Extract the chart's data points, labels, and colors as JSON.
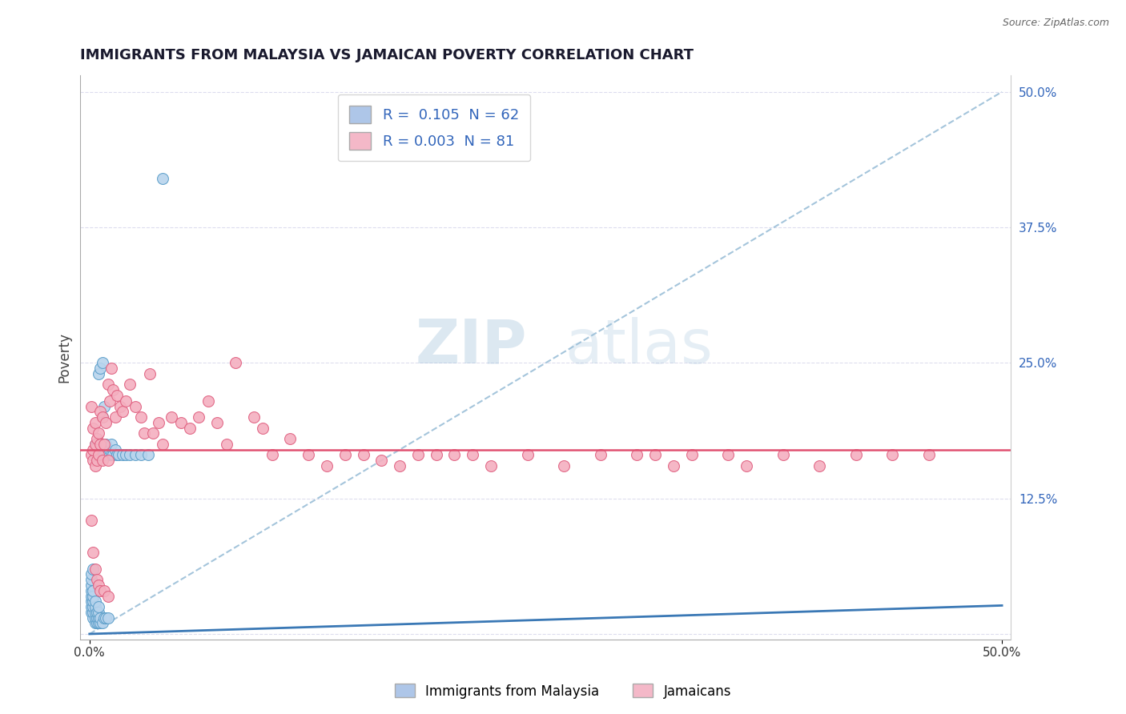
{
  "title": "IMMIGRANTS FROM MALAYSIA VS JAMAICAN POVERTY CORRELATION CHART",
  "source": "Source: ZipAtlas.com",
  "ylabel": "Poverty",
  "y_ticks": [
    0.0,
    0.125,
    0.25,
    0.375,
    0.5
  ],
  "y_tick_labels": [
    "",
    "12.5%",
    "25.0%",
    "37.5%",
    "50.0%"
  ],
  "xlim": [
    0.0,
    0.5
  ],
  "ylim": [
    0.0,
    0.5
  ],
  "legend1_r": "0.105",
  "legend1_n": "62",
  "legend2_r": "0.003",
  "legend2_n": "81",
  "legend1_color": "#aec6e8",
  "legend2_color": "#f4b8c8",
  "blue_fill": "#b8d4ed",
  "pink_fill": "#f4b0c0",
  "blue_edge": "#5b9ec9",
  "pink_edge": "#e06080",
  "blue_line_color": "#3a78b5",
  "pink_line_color": "#e05070",
  "dash_line_color": "#9bbfd8",
  "watermark_zip": "ZIP",
  "watermark_atlas": "atlas",
  "watermark_color_zip": "#9bbfd8",
  "watermark_color_atlas": "#9bbfd8",
  "legend_text_color": "#3366bb",
  "title_color": "#1a1a2e",
  "source_color": "#666666",
  "tick_color": "#3366bb",
  "ylabel_color": "#444444",
  "grid_color": "#ddddee",
  "blue_line_y0": 0.0,
  "blue_line_y1": 0.035,
  "blue_line_x0": 0.0,
  "blue_line_x1": 0.05,
  "pink_line_y": 0.17,
  "blue_dots_x": [
    0.001,
    0.001,
    0.001,
    0.001,
    0.001,
    0.001,
    0.001,
    0.001,
    0.002,
    0.002,
    0.002,
    0.002,
    0.002,
    0.002,
    0.002,
    0.003,
    0.003,
    0.003,
    0.003,
    0.003,
    0.003,
    0.003,
    0.004,
    0.004,
    0.004,
    0.004,
    0.004,
    0.005,
    0.005,
    0.005,
    0.005,
    0.005,
    0.005,
    0.006,
    0.006,
    0.006,
    0.006,
    0.007,
    0.007,
    0.007,
    0.007,
    0.008,
    0.008,
    0.008,
    0.009,
    0.009,
    0.01,
    0.01,
    0.011,
    0.012,
    0.012,
    0.013,
    0.014,
    0.015,
    0.016,
    0.018,
    0.02,
    0.022,
    0.025,
    0.028,
    0.032,
    0.04
  ],
  "blue_dots_y": [
    0.02,
    0.025,
    0.03,
    0.035,
    0.04,
    0.045,
    0.05,
    0.055,
    0.015,
    0.02,
    0.025,
    0.03,
    0.035,
    0.04,
    0.06,
    0.01,
    0.015,
    0.02,
    0.025,
    0.03,
    0.165,
    0.175,
    0.01,
    0.015,
    0.02,
    0.17,
    0.175,
    0.01,
    0.015,
    0.02,
    0.025,
    0.165,
    0.24,
    0.01,
    0.015,
    0.17,
    0.245,
    0.01,
    0.165,
    0.2,
    0.25,
    0.015,
    0.165,
    0.21,
    0.015,
    0.175,
    0.015,
    0.165,
    0.17,
    0.165,
    0.175,
    0.165,
    0.17,
    0.165,
    0.165,
    0.165,
    0.165,
    0.165,
    0.165,
    0.165,
    0.165,
    0.42
  ],
  "pink_dots_x": [
    0.001,
    0.001,
    0.002,
    0.002,
    0.002,
    0.003,
    0.003,
    0.003,
    0.004,
    0.004,
    0.005,
    0.005,
    0.006,
    0.006,
    0.007,
    0.007,
    0.008,
    0.009,
    0.01,
    0.01,
    0.011,
    0.012,
    0.013,
    0.014,
    0.015,
    0.017,
    0.018,
    0.02,
    0.022,
    0.025,
    0.028,
    0.03,
    0.033,
    0.035,
    0.038,
    0.04,
    0.045,
    0.05,
    0.055,
    0.06,
    0.065,
    0.07,
    0.075,
    0.08,
    0.09,
    0.095,
    0.1,
    0.11,
    0.12,
    0.13,
    0.14,
    0.15,
    0.16,
    0.17,
    0.18,
    0.19,
    0.2,
    0.21,
    0.22,
    0.24,
    0.26,
    0.28,
    0.3,
    0.31,
    0.32,
    0.33,
    0.35,
    0.36,
    0.38,
    0.4,
    0.42,
    0.44,
    0.46,
    0.001,
    0.002,
    0.003,
    0.004,
    0.005,
    0.006,
    0.008,
    0.01
  ],
  "pink_dots_y": [
    0.165,
    0.21,
    0.16,
    0.17,
    0.19,
    0.155,
    0.175,
    0.195,
    0.16,
    0.18,
    0.165,
    0.185,
    0.175,
    0.205,
    0.16,
    0.2,
    0.175,
    0.195,
    0.16,
    0.23,
    0.215,
    0.245,
    0.225,
    0.2,
    0.22,
    0.21,
    0.205,
    0.215,
    0.23,
    0.21,
    0.2,
    0.185,
    0.24,
    0.185,
    0.195,
    0.175,
    0.2,
    0.195,
    0.19,
    0.2,
    0.215,
    0.195,
    0.175,
    0.25,
    0.2,
    0.19,
    0.165,
    0.18,
    0.165,
    0.155,
    0.165,
    0.165,
    0.16,
    0.155,
    0.165,
    0.165,
    0.165,
    0.165,
    0.155,
    0.165,
    0.155,
    0.165,
    0.165,
    0.165,
    0.155,
    0.165,
    0.165,
    0.155,
    0.165,
    0.155,
    0.165,
    0.165,
    0.165,
    0.105,
    0.075,
    0.06,
    0.05,
    0.045,
    0.04,
    0.04,
    0.035
  ],
  "marker_size": 100
}
